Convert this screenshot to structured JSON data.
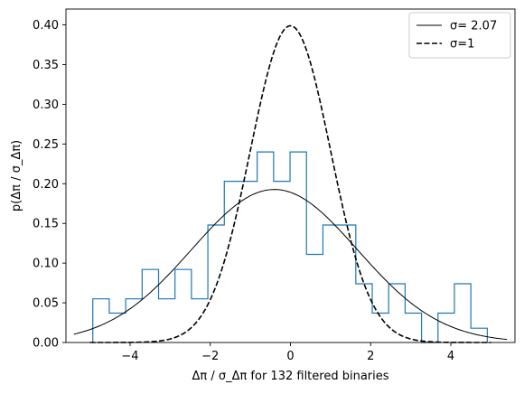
{
  "chart_data": {
    "type": "line",
    "xlabel": "Δπ / σ_Δπ for 132 filtered binaries",
    "ylabel": "p(Δπ / σ_Δπ)",
    "xlim": [
      -5.6,
      5.6
    ],
    "ylim": [
      0,
      0.42
    ],
    "xticks": [
      -4,
      -2,
      0,
      2,
      4
    ],
    "xtick_labels": [
      "−4",
      "−2",
      "0",
      "2",
      "4"
    ],
    "yticks": [
      0.0,
      0.05,
      0.1,
      0.15,
      0.2,
      0.25,
      0.3,
      0.35,
      0.4
    ],
    "ytick_labels": [
      "0.00",
      "0.05",
      "0.10",
      "0.15",
      "0.20",
      "0.25",
      "0.30",
      "0.35",
      "0.40"
    ],
    "grid": false,
    "legend_position": "top-right",
    "histogram": {
      "color": "#1f77b4",
      "bin_edges": [
        -4.93,
        -4.52,
        -4.11,
        -3.7,
        -3.29,
        -2.88,
        -2.47,
        -2.06,
        -1.65,
        -1.24,
        -0.83,
        -0.42,
        -0.01,
        0.4,
        0.81,
        1.22,
        1.63,
        2.04,
        2.45,
        2.86,
        3.27,
        3.68,
        4.09,
        4.5,
        4.91
      ],
      "densities": [
        0.055,
        0.037,
        0.055,
        0.092,
        0.055,
        0.092,
        0.055,
        0.148,
        0.203,
        0.203,
        0.24,
        0.203,
        0.24,
        0.111,
        0.148,
        0.148,
        0.074,
        0.037,
        0.074,
        0.037,
        0.0,
        0.037,
        0.074,
        0.018
      ]
    },
    "series": [
      {
        "name": "σ= 2.07",
        "distribution": "normal",
        "mean": -0.4,
        "sigma": 2.07,
        "x_range": [
          -5.4,
          5.4
        ],
        "color": "#000000",
        "style": "solid"
      },
      {
        "name": "σ=1",
        "distribution": "normal",
        "mean": 0.0,
        "sigma": 1.0,
        "x_range": [
          -5.0,
          5.0
        ],
        "color": "#000000",
        "style": "dashed"
      }
    ]
  }
}
